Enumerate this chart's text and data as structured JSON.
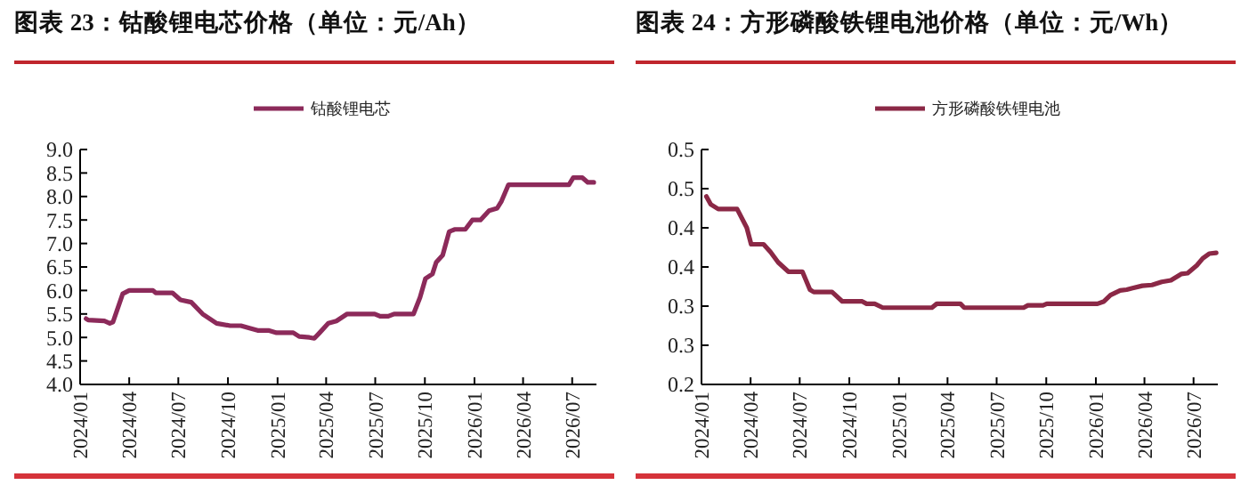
{
  "chart_data": [
    {
      "type": "line",
      "title": "图表 23：钴酸锂电芯价格（单位：元/Ah）",
      "legend": "top",
      "grid": false,
      "xlim": [
        "2024-01-01",
        "2026-08-15"
      ],
      "xticks": [
        {
          "value": "2024-01",
          "label": "2024/01"
        },
        {
          "value": "2024-04",
          "label": "2024/04"
        },
        {
          "value": "2024-07",
          "label": "2024/07"
        },
        {
          "value": "2024-10",
          "label": "2024/10"
        },
        {
          "value": "2025-01",
          "label": "2025/01"
        },
        {
          "value": "2025-04",
          "label": "2025/04"
        },
        {
          "value": "2025-07",
          "label": "2025/07"
        },
        {
          "value": "2025-10",
          "label": "2025/10"
        },
        {
          "value": "2026-01",
          "label": "2026/01"
        },
        {
          "value": "2026-04",
          "label": "2026/04"
        },
        {
          "value": "2026-07",
          "label": "2026/07"
        }
      ],
      "ylim": [
        4,
        9
      ],
      "yticks": [
        {
          "value": 4,
          "label": "4.0"
        },
        {
          "value": 4.5,
          "label": "4.5"
        },
        {
          "value": 5,
          "label": "5.0"
        },
        {
          "value": 5.5,
          "label": "5.5"
        },
        {
          "value": 6,
          "label": "6.0"
        },
        {
          "value": 6.5,
          "label": "6.5"
        },
        {
          "value": 7,
          "label": "7.0"
        },
        {
          "value": 7.5,
          "label": "7.5"
        },
        {
          "value": 8,
          "label": "8.0"
        },
        {
          "value": 8.5,
          "label": "8.5"
        },
        {
          "value": 9,
          "label": "9.0"
        }
      ],
      "series": [
        {
          "name": "钴酸锂电芯",
          "color": "#8c2a5a",
          "x": [
            "2024-01-12",
            "2024-01-16",
            "2024-02-15",
            "2024-02-25",
            "2024-03-02",
            "2024-03-20",
            "2024-04-01",
            "2024-05-15",
            "2024-05-20",
            "2024-06-20",
            "2024-07-05",
            "2024-07-25",
            "2024-08-15",
            "2024-09-10",
            "2024-10-05",
            "2024-10-25",
            "2024-11-10",
            "2024-11-25",
            "2024-12-15",
            "2024-12-30",
            "2025-01-30",
            "2025-02-10",
            "2025-03-01",
            "2025-03-10",
            "2025-03-20",
            "2025-04-05",
            "2025-04-20",
            "2025-05-10",
            "2025-06-30",
            "2025-07-10",
            "2025-07-25",
            "2025-08-05",
            "2025-09-10",
            "2025-09-22",
            "2025-10-02",
            "2025-10-15",
            "2025-10-22",
            "2025-11-03",
            "2025-11-15",
            "2025-11-25",
            "2025-12-15",
            "2025-12-28",
            "2026-01-12",
            "2026-01-28",
            "2026-02-12",
            "2026-02-20",
            "2026-03-05",
            "2026-06-25",
            "2026-07-03",
            "2026-07-20",
            "2026-07-30",
            "2026-08-10"
          ],
          "values": [
            5.4,
            5.37,
            5.35,
            5.3,
            5.33,
            5.93,
            6.0,
            6.0,
            5.95,
            5.95,
            5.8,
            5.75,
            5.5,
            5.3,
            5.25,
            5.25,
            5.2,
            5.15,
            5.15,
            5.1,
            5.1,
            5.02,
            5.0,
            4.98,
            5.1,
            5.3,
            5.35,
            5.5,
            5.5,
            5.45,
            5.45,
            5.5,
            5.5,
            5.85,
            6.25,
            6.35,
            6.6,
            6.75,
            7.25,
            7.3,
            7.3,
            7.5,
            7.5,
            7.7,
            7.75,
            7.9,
            8.25,
            8.25,
            8.4,
            8.4,
            8.3,
            8.3
          ]
        }
      ]
    },
    {
      "type": "line",
      "title": "图表 24：方形磷酸铁锂电池价格（单位：元/Wh）",
      "legend": "top",
      "grid": false,
      "xlim": [
        "2024-01-01",
        "2026-08-15"
      ],
      "xticks": [
        {
          "value": "2024-01",
          "label": "2024/01"
        },
        {
          "value": "2024-04",
          "label": "2024/04"
        },
        {
          "value": "2024-07",
          "label": "2024/07"
        },
        {
          "value": "2024-10",
          "label": "2024/10"
        },
        {
          "value": "2025-01",
          "label": "2025/01"
        },
        {
          "value": "2025-04",
          "label": "2025/04"
        },
        {
          "value": "2025-07",
          "label": "2025/07"
        },
        {
          "value": "2025-10",
          "label": "2025/10"
        },
        {
          "value": "2026-01",
          "label": "2026/01"
        },
        {
          "value": "2026-04",
          "label": "2026/04"
        },
        {
          "value": "2026-07",
          "label": "2026/07"
        }
      ],
      "ylim": [
        0.2,
        0.5
      ],
      "yticks": [
        {
          "value": 0.2,
          "label": "0.2"
        },
        {
          "value": 0.25,
          "label": "0.3"
        },
        {
          "value": 0.3,
          "label": "0.3"
        },
        {
          "value": 0.35,
          "label": "0.4"
        },
        {
          "value": 0.4,
          "label": "0.4"
        },
        {
          "value": 0.45,
          "label": "0.5"
        },
        {
          "value": 0.5,
          "label": "0.5"
        }
      ],
      "series": [
        {
          "name": "方形磷酸铁锂电池",
          "color": "#8b2846",
          "x": [
            "2024-01-10",
            "2024-01-18",
            "2024-02-01",
            "2024-03-07",
            "2024-03-25",
            "2024-04-02",
            "2024-04-25",
            "2024-05-08",
            "2024-05-22",
            "2024-06-10",
            "2024-07-06",
            "2024-07-20",
            "2024-07-27",
            "2024-08-30",
            "2024-09-18",
            "2024-10-25",
            "2024-11-02",
            "2024-11-17",
            "2024-12-02",
            "2025-03-03",
            "2025-03-12",
            "2025-04-25",
            "2025-05-02",
            "2025-08-20",
            "2025-08-28",
            "2025-09-25",
            "2025-10-02",
            "2026-01-04",
            "2026-01-16",
            "2026-01-28",
            "2026-02-15",
            "2026-02-27",
            "2026-03-10",
            "2026-03-28",
            "2026-04-15",
            "2026-05-03",
            "2026-05-20",
            "2026-06-08",
            "2026-06-20",
            "2026-07-07",
            "2026-07-18",
            "2026-07-30",
            "2026-08-12"
          ],
          "values": [
            0.44,
            0.43,
            0.424,
            0.424,
            0.4,
            0.379,
            0.379,
            0.369,
            0.356,
            0.344,
            0.344,
            0.321,
            0.318,
            0.318,
            0.306,
            0.306,
            0.303,
            0.303,
            0.298,
            0.298,
            0.303,
            0.303,
            0.298,
            0.298,
            0.301,
            0.301,
            0.303,
            0.303,
            0.306,
            0.314,
            0.32,
            0.321,
            0.323,
            0.326,
            0.327,
            0.331,
            0.333,
            0.341,
            0.342,
            0.352,
            0.361,
            0.367,
            0.368
          ]
        }
      ]
    }
  ]
}
